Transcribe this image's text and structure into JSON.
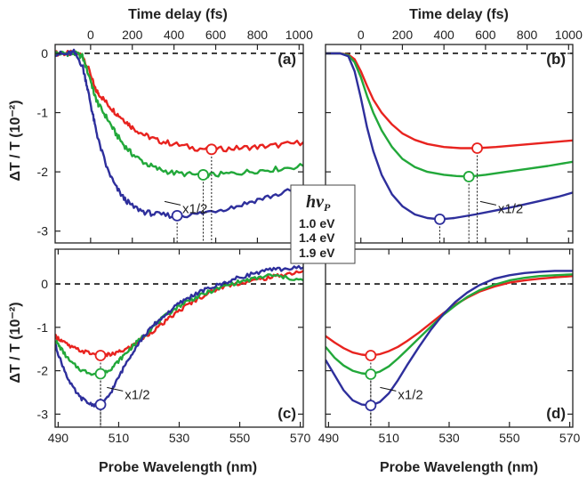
{
  "labels": {
    "top_xlabel": "Time delay (fs)",
    "bottom_xlabel": "Probe Wavelength (nm)",
    "ylabel": "ΔT / T (10⁻²)"
  },
  "legend": {
    "title": "hν",
    "title_sub": "P",
    "entries": [
      {
        "label": "1.0 eV",
        "color": "#e8231f"
      },
      {
        "label": "1.4 eV",
        "color": "#22a83a"
      },
      {
        "label": "1.9 eV",
        "color": "#2e2f9c"
      }
    ]
  },
  "chart_data": [
    {
      "panel": "(a)",
      "type": "line",
      "xlabel": "Time delay (fs)",
      "ylabel": "ΔT / T (10⁻²)",
      "xlim": [
        -170,
        1020
      ],
      "ylim": [
        -3.2,
        0.15
      ],
      "xticks": [
        0,
        200,
        400,
        600,
        800,
        1000
      ],
      "yticks": [
        0,
        -1,
        -2,
        -3
      ],
      "scale_note": "x1/2",
      "markers": [
        {
          "series": "1.0 eV",
          "x": 580,
          "y": -1.62
        },
        {
          "series": "1.4 eV",
          "x": 540,
          "y": -2.05
        },
        {
          "series": "1.9 eV",
          "x": 415,
          "y": -2.74
        }
      ],
      "series": [
        {
          "name": "1.0 eV",
          "color": "#e8231f",
          "noisy": true,
          "x": [
            -170,
            -120,
            -80,
            -40,
            0,
            20,
            40,
            80,
            120,
            160,
            200,
            260,
            320,
            400,
            500,
            600,
            700,
            800,
            900,
            1020
          ],
          "y": [
            0,
            0,
            0,
            -0.02,
            -0.35,
            -0.6,
            -0.68,
            -0.85,
            -1.0,
            -1.12,
            -1.25,
            -1.38,
            -1.47,
            -1.53,
            -1.6,
            -1.62,
            -1.6,
            -1.58,
            -1.55,
            -1.5
          ]
        },
        {
          "name": "1.4 eV",
          "color": "#22a83a",
          "noisy": true,
          "x": [
            -170,
            -120,
            -80,
            -40,
            0,
            20,
            40,
            80,
            120,
            160,
            200,
            260,
            320,
            400,
            500,
            600,
            700,
            800,
            900,
            1020
          ],
          "y": [
            0,
            0,
            0,
            -0.05,
            -0.45,
            -0.72,
            -0.88,
            -1.1,
            -1.35,
            -1.55,
            -1.7,
            -1.85,
            -1.95,
            -2.02,
            -2.05,
            -2.05,
            -2.02,
            -1.98,
            -1.95,
            -1.9
          ]
        },
        {
          "name": "1.9 eV",
          "color": "#2e2f9c",
          "noisy": true,
          "x": [
            -170,
            -120,
            -80,
            -40,
            -20,
            0,
            20,
            40,
            80,
            120,
            160,
            200,
            260,
            320,
            400,
            500,
            600,
            700,
            800,
            900,
            1020
          ],
          "y": [
            0,
            -0.02,
            0.02,
            -0.2,
            -0.5,
            -0.85,
            -1.2,
            -1.5,
            -1.95,
            -2.25,
            -2.45,
            -2.58,
            -2.68,
            -2.72,
            -2.74,
            -2.72,
            -2.65,
            -2.58,
            -2.47,
            -2.38,
            -2.25
          ]
        }
      ]
    },
    {
      "panel": "(b)",
      "type": "line",
      "xlabel": "Time delay (fs)",
      "ylabel": "ΔT / T (10⁻²)",
      "xlim": [
        -170,
        1020
      ],
      "ylim": [
        -3.2,
        0.15
      ],
      "xticks": [
        0,
        200,
        400,
        600,
        800,
        1000
      ],
      "yticks": [
        0,
        -1,
        -2,
        -3
      ],
      "scale_note": "x1/2",
      "markers": [
        {
          "series": "1.0 eV",
          "x": 560,
          "y": -1.6
        },
        {
          "series": "1.4 eV",
          "x": 520,
          "y": -2.08
        },
        {
          "series": "1.9 eV",
          "x": 380,
          "y": -2.8
        }
      ],
      "series": [
        {
          "name": "1.0 eV",
          "color": "#e8231f",
          "noisy": false,
          "x": [
            -170,
            -100,
            -60,
            -30,
            0,
            30,
            60,
            100,
            150,
            200,
            260,
            320,
            400,
            480,
            560,
            650,
            750,
            850,
            950,
            1020
          ],
          "y": [
            0,
            0,
            -0.02,
            -0.1,
            -0.3,
            -0.55,
            -0.78,
            -1.0,
            -1.2,
            -1.35,
            -1.46,
            -1.53,
            -1.58,
            -1.6,
            -1.6,
            -1.58,
            -1.55,
            -1.52,
            -1.49,
            -1.47
          ]
        },
        {
          "name": "1.4 eV",
          "color": "#22a83a",
          "noisy": false,
          "x": [
            -170,
            -100,
            -60,
            -30,
            0,
            30,
            60,
            100,
            150,
            200,
            260,
            320,
            400,
            460,
            520,
            600,
            700,
            800,
            900,
            1020
          ],
          "y": [
            0,
            0,
            -0.03,
            -0.15,
            -0.4,
            -0.72,
            -1.0,
            -1.3,
            -1.58,
            -1.78,
            -1.92,
            -2.0,
            -2.05,
            -2.07,
            -2.08,
            -2.05,
            -2.0,
            -1.95,
            -1.9,
            -1.83
          ]
        },
        {
          "name": "1.9 eV",
          "color": "#2e2f9c",
          "noisy": false,
          "x": [
            -170,
            -100,
            -60,
            -30,
            0,
            30,
            60,
            100,
            150,
            200,
            260,
            320,
            380,
            450,
            550,
            650,
            750,
            850,
            950,
            1020
          ],
          "y": [
            0,
            0,
            -0.05,
            -0.3,
            -0.75,
            -1.25,
            -1.65,
            -2.05,
            -2.38,
            -2.58,
            -2.72,
            -2.78,
            -2.8,
            -2.78,
            -2.72,
            -2.65,
            -2.58,
            -2.5,
            -2.42,
            -2.35
          ]
        }
      ]
    },
    {
      "panel": "(c)",
      "type": "line",
      "xlabel": "Probe Wavelength (nm)",
      "ylabel": "ΔT / T (10⁻²)",
      "xlim": [
        489,
        571
      ],
      "ylim": [
        -3.3,
        0.8
      ],
      "xticks": [
        490,
        510,
        530,
        550,
        570
      ],
      "yticks": [
        0,
        -1,
        -2,
        -3
      ],
      "scale_note": "x1/2",
      "markers": [
        {
          "series": "1.0 eV",
          "x": 504,
          "y": -1.65
        },
        {
          "series": "1.4 eV",
          "x": 504,
          "y": -2.07
        },
        {
          "series": "1.9 eV",
          "x": 504,
          "y": -2.78
        }
      ],
      "series": [
        {
          "name": "1.0 eV",
          "color": "#e8231f",
          "noisy": true,
          "x": [
            489,
            491,
            494,
            498,
            502,
            505,
            508,
            511,
            514,
            517,
            520,
            524,
            528,
            532,
            536,
            540,
            545,
            550,
            555,
            560,
            565,
            571
          ],
          "y": [
            -1.2,
            -1.3,
            -1.45,
            -1.55,
            -1.62,
            -1.65,
            -1.62,
            -1.55,
            -1.45,
            -1.3,
            -1.15,
            -0.95,
            -0.72,
            -0.52,
            -0.35,
            -0.2,
            -0.05,
            0.02,
            0.08,
            0.15,
            0.22,
            0.3
          ]
        },
        {
          "name": "1.4 eV",
          "color": "#22a83a",
          "noisy": true,
          "x": [
            489,
            491,
            494,
            498,
            502,
            505,
            508,
            511,
            514,
            517,
            520,
            524,
            528,
            532,
            536,
            540,
            545,
            550,
            555,
            560,
            565,
            571
          ],
          "y": [
            -1.3,
            -1.5,
            -1.8,
            -2.0,
            -2.07,
            -2.05,
            -1.92,
            -1.7,
            -1.48,
            -1.28,
            -1.08,
            -0.82,
            -0.6,
            -0.42,
            -0.3,
            -0.18,
            -0.05,
            0.05,
            0.12,
            0.2,
            0.15,
            0.08
          ]
        },
        {
          "name": "1.9 eV",
          "color": "#2e2f9c",
          "noisy": true,
          "x": [
            489,
            491,
            494,
            497,
            500,
            503,
            505,
            507,
            510,
            513,
            516,
            519,
            522,
            526,
            530,
            534,
            538,
            542,
            546,
            550,
            555,
            560,
            565,
            571
          ],
          "y": [
            -1.4,
            -1.8,
            -2.3,
            -2.6,
            -2.75,
            -2.8,
            -2.75,
            -2.55,
            -2.15,
            -1.75,
            -1.42,
            -1.15,
            -0.92,
            -0.68,
            -0.45,
            -0.28,
            -0.15,
            -0.05,
            0.05,
            0.15,
            0.25,
            0.32,
            0.35,
            0.38
          ]
        }
      ]
    },
    {
      "panel": "(d)",
      "type": "line",
      "xlabel": "Probe Wavelength (nm)",
      "ylabel": "ΔT / T (10⁻²)",
      "xlim": [
        489,
        571
      ],
      "ylim": [
        -3.3,
        0.8
      ],
      "xticks": [
        490,
        510,
        530,
        550,
        570
      ],
      "yticks": [
        0,
        -1,
        -2,
        -3
      ],
      "scale_note": "x1/2",
      "markers": [
        {
          "series": "1.0 eV",
          "x": 504,
          "y": -1.65
        },
        {
          "series": "1.4 eV",
          "x": 504,
          "y": -2.08
        },
        {
          "series": "1.9 eV",
          "x": 504,
          "y": -2.8
        }
      ],
      "series": [
        {
          "name": "1.0 eV",
          "color": "#e8231f",
          "noisy": false,
          "x": [
            489,
            492,
            495,
            498,
            501,
            504,
            507,
            510,
            513,
            516,
            520,
            524,
            528,
            532,
            536,
            540,
            545,
            550,
            555,
            560,
            565,
            571
          ],
          "y": [
            -1.2,
            -1.35,
            -1.48,
            -1.58,
            -1.63,
            -1.65,
            -1.62,
            -1.55,
            -1.45,
            -1.32,
            -1.12,
            -0.9,
            -0.68,
            -0.48,
            -0.32,
            -0.18,
            -0.06,
            0.03,
            0.08,
            0.12,
            0.15,
            0.18
          ]
        },
        {
          "name": "1.4 eV",
          "color": "#22a83a",
          "noisy": false,
          "x": [
            489,
            492,
            495,
            498,
            501,
            504,
            507,
            510,
            513,
            516,
            520,
            524,
            528,
            532,
            536,
            540,
            545,
            550,
            555,
            560,
            565,
            571
          ],
          "y": [
            -1.45,
            -1.7,
            -1.88,
            -2.0,
            -2.06,
            -2.08,
            -2.02,
            -1.9,
            -1.72,
            -1.52,
            -1.25,
            -0.98,
            -0.72,
            -0.5,
            -0.3,
            -0.15,
            -0.02,
            0.08,
            0.14,
            0.18,
            0.2,
            0.22
          ]
        },
        {
          "name": "1.9 eV",
          "color": "#2e2f9c",
          "noisy": false,
          "x": [
            489,
            492,
            495,
            498,
            501,
            504,
            507,
            510,
            513,
            516,
            520,
            524,
            528,
            532,
            536,
            540,
            545,
            550,
            555,
            560,
            565,
            571
          ],
          "y": [
            -1.75,
            -2.1,
            -2.45,
            -2.68,
            -2.78,
            -2.8,
            -2.72,
            -2.52,
            -2.22,
            -1.88,
            -1.45,
            -1.05,
            -0.7,
            -0.42,
            -0.2,
            -0.03,
            0.12,
            0.2,
            0.25,
            0.28,
            0.3,
            0.3
          ]
        }
      ]
    }
  ]
}
